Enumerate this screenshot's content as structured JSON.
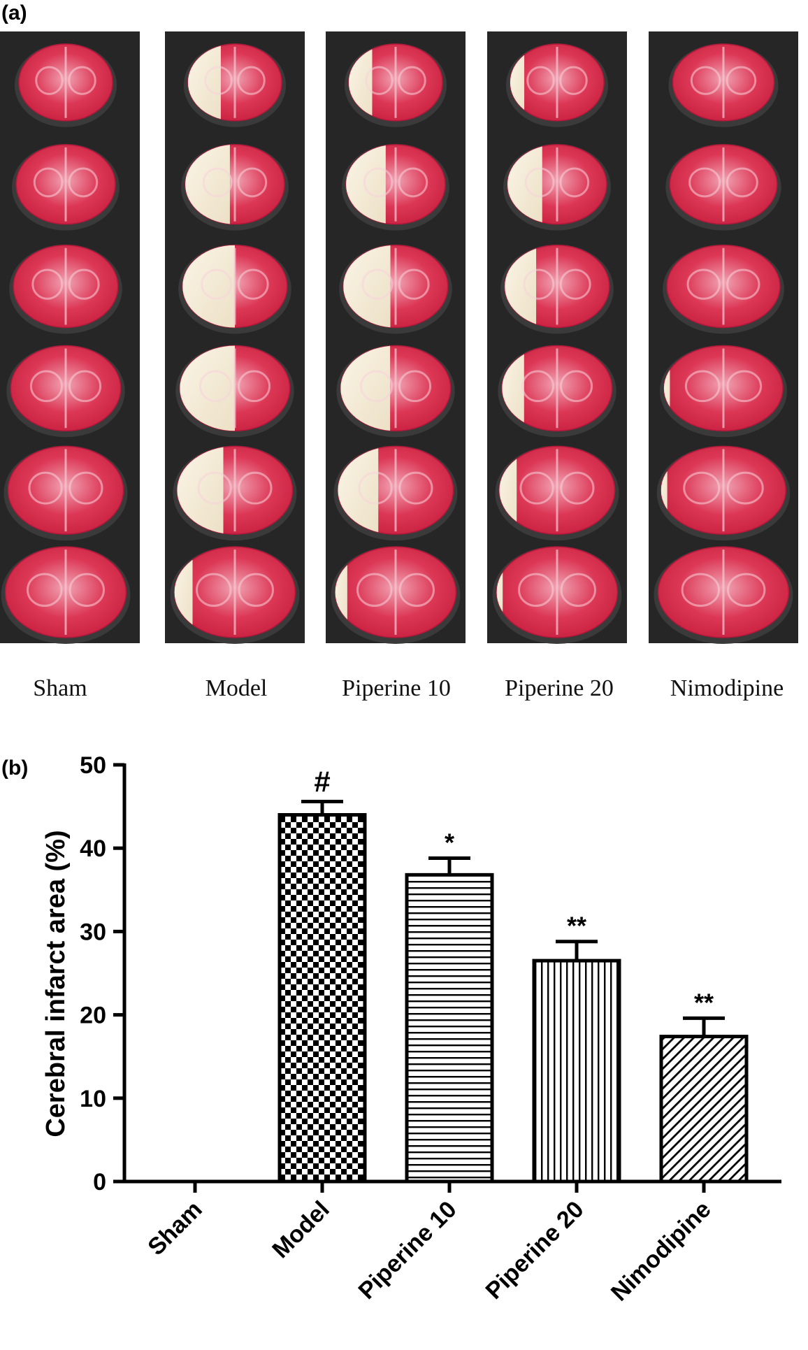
{
  "panel_a": {
    "label": "(a)",
    "groups": [
      "Sham",
      "Model",
      "Piperine 10",
      "Piperine 20",
      "Nimodipine"
    ],
    "infarct_fraction_per_slice": [
      [
        0,
        0,
        0,
        0,
        0,
        0
      ],
      [
        0.35,
        0.45,
        0.5,
        0.5,
        0.4,
        0.15
      ],
      [
        0.25,
        0.4,
        0.45,
        0.45,
        0.35,
        0.1
      ],
      [
        0.15,
        0.35,
        0.3,
        0.2,
        0.15,
        0.05
      ],
      [
        0,
        0,
        0,
        0.05,
        0.05,
        0
      ]
    ]
  },
  "panel_b": {
    "label": "(b)"
  },
  "chart_data": {
    "type": "bar",
    "categories": [
      "Sham",
      "Model",
      "Piperine 10",
      "Piperine 20",
      "Nimodipine"
    ],
    "values": [
      0,
      44,
      36.8,
      26.5,
      17.4
    ],
    "errors": [
      0,
      1.6,
      2.0,
      2.3,
      2.2
    ],
    "annotations": [
      "",
      "#",
      "*",
      "**",
      "**"
    ],
    "patterns": [
      "none",
      "checker",
      "horizontal",
      "vertical",
      "diagonal"
    ],
    "ylabel": "Cerebral infarct area (%)",
    "xlabel": "",
    "ylim": [
      0,
      50
    ],
    "yticks": [
      0,
      10,
      20,
      30,
      40,
      50
    ],
    "grid": false
  }
}
